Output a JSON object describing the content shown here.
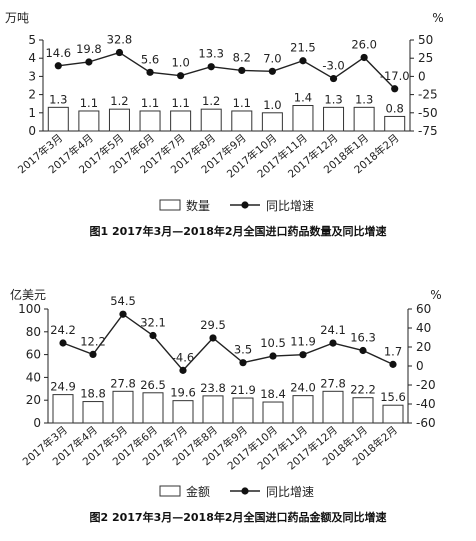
{
  "chart_data": [
    {
      "type": "bar",
      "caption": "图1   2017年3月—2018年2月全国进口药品数量及同比增速",
      "left_unit": "万吨",
      "right_unit": "%",
      "categories": [
        "2017年3月",
        "2017年4月",
        "2017年5月",
        "2017年6月",
        "2017年7月",
        "2017年8月",
        "2017年9月",
        "2017年10月",
        "2017年11月",
        "2017年12月",
        "2018年1月",
        "2018年2月"
      ],
      "ylim": [
        0,
        5
      ],
      "yticks": [
        0,
        1,
        2,
        3,
        4,
        5
      ],
      "y2lim": [
        -75,
        50
      ],
      "y2ticks": [
        -75,
        -50,
        -25,
        0,
        25,
        50
      ],
      "series": [
        {
          "name": "数量",
          "kind": "bar",
          "axis": "left",
          "values": [
            1.3,
            1.1,
            1.2,
            1.1,
            1.1,
            1.2,
            1.1,
            1.0,
            1.4,
            1.3,
            1.3,
            0.8
          ]
        },
        {
          "name": "同比增速",
          "kind": "line",
          "axis": "right",
          "values": [
            14.6,
            19.8,
            32.8,
            5.6,
            1.0,
            13.3,
            8.2,
            7.0,
            21.5,
            -3.0,
            26.0,
            -17.0
          ]
        }
      ]
    },
    {
      "type": "bar",
      "caption": "图2   2017年3月—2018年2月全国进口药品金额及同比增速",
      "left_unit": "亿美元",
      "right_unit": "%",
      "categories": [
        "2017年3月",
        "2017年4月",
        "2017年5月",
        "2017年6月",
        "2017年7月",
        "2017年8月",
        "2017年9月",
        "2017年10月",
        "2017年11月",
        "2017年12月",
        "2018年1月",
        "2018年2月"
      ],
      "ylim": [
        0,
        100
      ],
      "yticks": [
        0,
        20,
        40,
        60,
        80,
        100
      ],
      "y2lim": [
        -60,
        60
      ],
      "y2ticks": [
        -60,
        -40,
        -20,
        0,
        20,
        40,
        60
      ],
      "series": [
        {
          "name": "金额",
          "kind": "bar",
          "axis": "left",
          "values": [
            24.9,
            18.8,
            27.8,
            26.5,
            19.6,
            23.8,
            21.9,
            18.4,
            24.0,
            27.8,
            22.2,
            15.6
          ]
        },
        {
          "name": "同比增速",
          "kind": "line",
          "axis": "right",
          "values": [
            24.2,
            12.2,
            54.5,
            32.1,
            -4.6,
            29.5,
            3.5,
            10.5,
            11.9,
            24.1,
            16.3,
            1.7
          ]
        }
      ]
    }
  ]
}
